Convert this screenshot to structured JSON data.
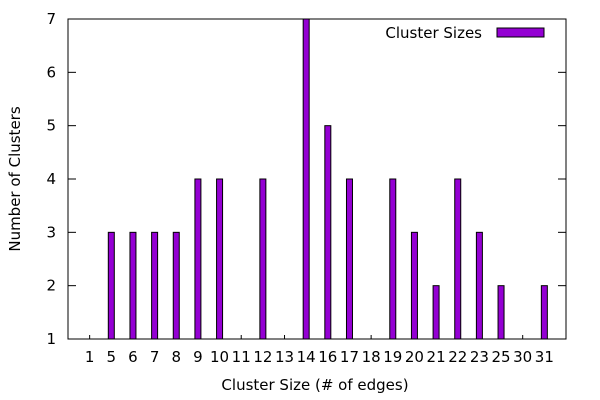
{
  "chart_data": {
    "type": "bar",
    "title": "",
    "xlabel": "Cluster Size (# of edges)",
    "ylabel": "Number of Clusters",
    "categories": [
      "1",
      "5",
      "6",
      "7",
      "8",
      "9",
      "10",
      "11",
      "12",
      "13",
      "14",
      "16",
      "17",
      "18",
      "19",
      "20",
      "21",
      "22",
      "23",
      "25",
      "30",
      "31"
    ],
    "series": [
      {
        "name": "Cluster Sizes",
        "color": "#9400d3",
        "values": [
          1,
          3,
          3,
          3,
          3,
          4,
          4,
          1,
          4,
          1,
          7,
          5,
          4,
          1,
          4,
          3,
          2,
          4,
          3,
          2,
          1,
          2
        ]
      }
    ],
    "ylim": [
      1,
      7
    ],
    "yticks": [
      1,
      2,
      3,
      4,
      5,
      6,
      7
    ],
    "grid": false,
    "legend_position": "top-right"
  }
}
